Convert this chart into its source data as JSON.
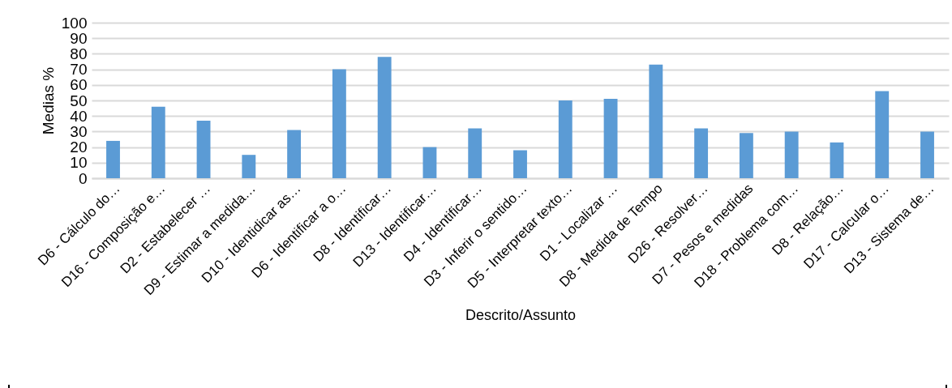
{
  "chart_data": {
    "type": "bar",
    "xlabel": "Descrito/Assunto",
    "ylabel": "Medias %",
    "categories": [
      "D6 - Cálculo do…",
      "D16 - Composição e…",
      "D2 - Estabelecer …",
      "D9 - Estimar a medida…",
      "D10 - Identidicar as…",
      "D6 - Identificar a o…",
      "D8 - Identificar…",
      "D13 - Identificar…",
      "D4 - Identificar…",
      "D3 - Inferir o sentido…",
      "D5 - Interpretar texto…",
      "D1 - Localizar …",
      "D8 - Medida de Tempo",
      "D26 - Resolver…",
      "D7 - Pesos e medidas",
      "D18 - Problema com…",
      "D8 - Relação…",
      "D17 - Calcular o…",
      "D13 - Sistema de…"
    ],
    "values": [
      24,
      46,
      37,
      15,
      31,
      70,
      78,
      20,
      32,
      18,
      50,
      51,
      73,
      32,
      29,
      30,
      23,
      56,
      30
    ],
    "color": "#5b9bd5",
    "ylim": [
      0,
      100
    ],
    "yticks": [
      0,
      10,
      20,
      30,
      40,
      50,
      60,
      70,
      80,
      90,
      100
    ],
    "grid": "y"
  }
}
